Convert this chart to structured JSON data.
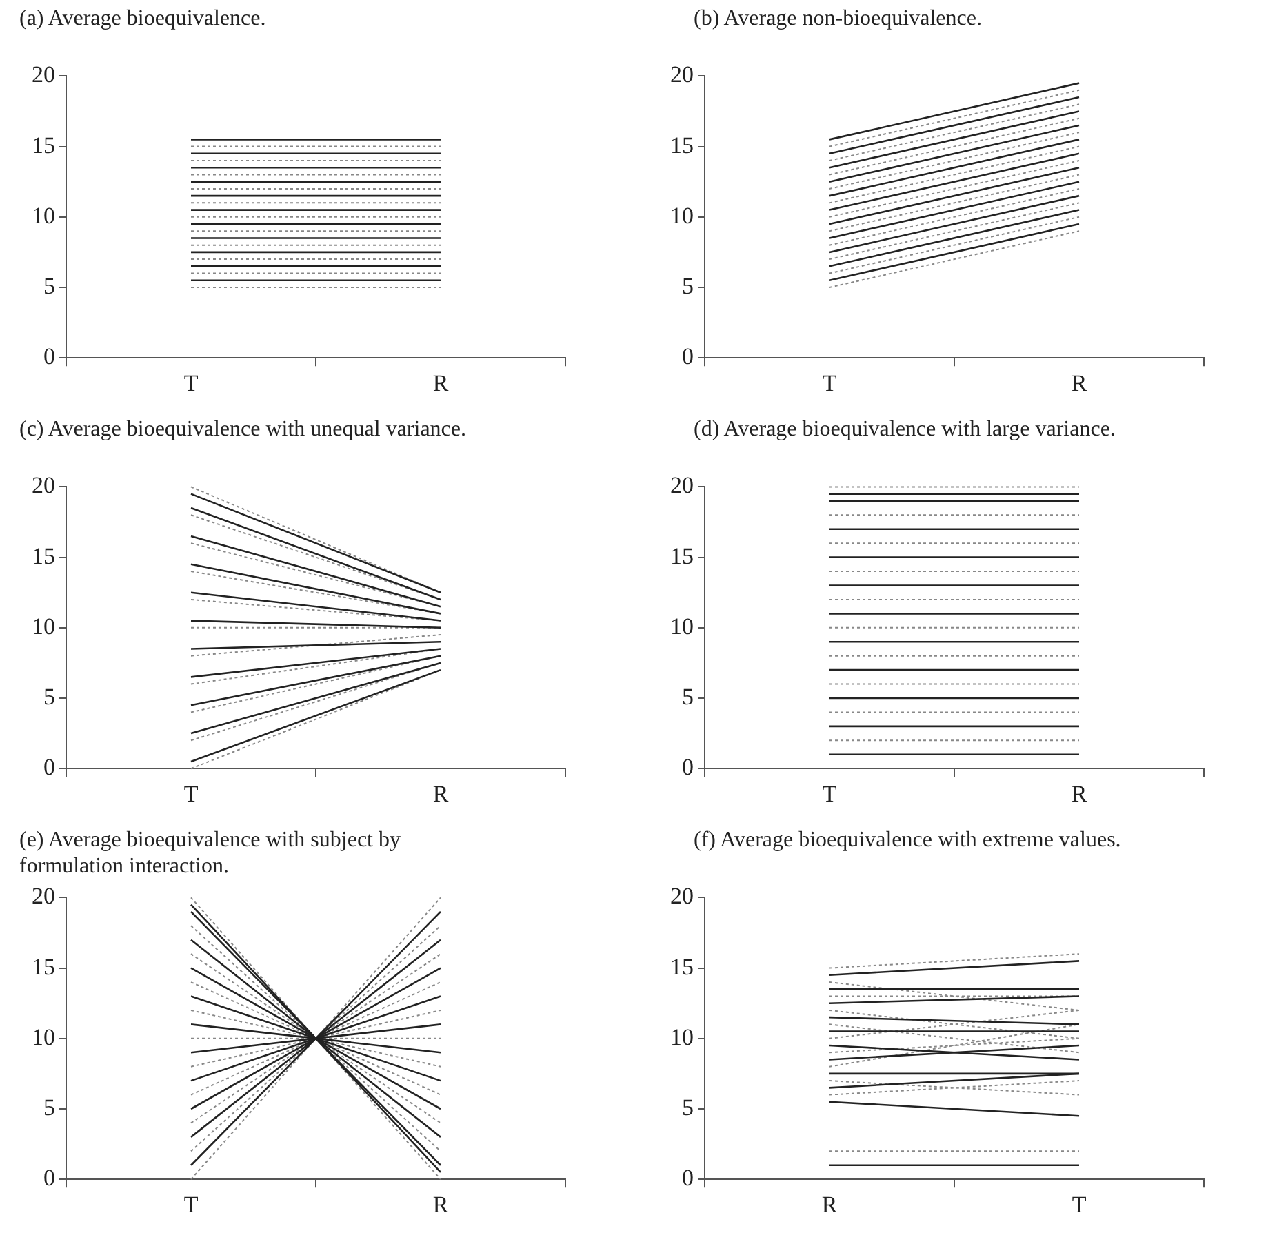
{
  "chart_data": [
    {
      "type": "line",
      "title": "(a) Average bioequivalence.",
      "categories": [
        "T",
        "R"
      ],
      "ylim": [
        0,
        20
      ],
      "yticks": [
        0,
        5,
        10,
        15,
        20
      ],
      "series": [
        {
          "color": "#222222",
          "line_style": "solid",
          "values": [
            15.5,
            15.5
          ]
        },
        {
          "color": "#222222",
          "line_style": "solid",
          "values": [
            14.5,
            14.5
          ]
        },
        {
          "color": "#222222",
          "line_style": "solid",
          "values": [
            13.5,
            13.5
          ]
        },
        {
          "color": "#222222",
          "line_style": "solid",
          "values": [
            12.5,
            12.5
          ]
        },
        {
          "color": "#222222",
          "line_style": "solid",
          "values": [
            11.5,
            11.5
          ]
        },
        {
          "color": "#222222",
          "line_style": "solid",
          "values": [
            10.5,
            10.5
          ]
        },
        {
          "color": "#222222",
          "line_style": "solid",
          "values": [
            9.5,
            9.5
          ]
        },
        {
          "color": "#222222",
          "line_style": "solid",
          "values": [
            8.5,
            8.5
          ]
        },
        {
          "color": "#222222",
          "line_style": "solid",
          "values": [
            7.5,
            7.5
          ]
        },
        {
          "color": "#222222",
          "line_style": "solid",
          "values": [
            6.5,
            6.5
          ]
        },
        {
          "color": "#222222",
          "line_style": "solid",
          "values": [
            5.5,
            5.5
          ]
        },
        {
          "color": "#888888",
          "line_style": "dotted",
          "values": [
            15,
            15
          ]
        },
        {
          "color": "#888888",
          "line_style": "dotted",
          "values": [
            14,
            14
          ]
        },
        {
          "color": "#888888",
          "line_style": "dotted",
          "values": [
            13,
            13
          ]
        },
        {
          "color": "#888888",
          "line_style": "dotted",
          "values": [
            12,
            12
          ]
        },
        {
          "color": "#888888",
          "line_style": "dotted",
          "values": [
            11,
            11
          ]
        },
        {
          "color": "#888888",
          "line_style": "dotted",
          "values": [
            10,
            10
          ]
        },
        {
          "color": "#888888",
          "line_style": "dotted",
          "values": [
            9,
            9
          ]
        },
        {
          "color": "#888888",
          "line_style": "dotted",
          "values": [
            8,
            8
          ]
        },
        {
          "color": "#888888",
          "line_style": "dotted",
          "values": [
            7,
            7
          ]
        },
        {
          "color": "#888888",
          "line_style": "dotted",
          "values": [
            6,
            6
          ]
        },
        {
          "color": "#888888",
          "line_style": "dotted",
          "values": [
            5,
            5
          ]
        }
      ]
    },
    {
      "type": "line",
      "title": "(b) Average non-bioequivalence.",
      "categories": [
        "T",
        "R"
      ],
      "ylim": [
        0,
        20
      ],
      "yticks": [
        0,
        5,
        10,
        15,
        20
      ],
      "series": [
        {
          "color": "#222222",
          "line_style": "solid",
          "values": [
            15.5,
            19.5
          ]
        },
        {
          "color": "#222222",
          "line_style": "solid",
          "values": [
            14.5,
            18.5
          ]
        },
        {
          "color": "#222222",
          "line_style": "solid",
          "values": [
            13.5,
            17.5
          ]
        },
        {
          "color": "#222222",
          "line_style": "solid",
          "values": [
            12.5,
            16.5
          ]
        },
        {
          "color": "#222222",
          "line_style": "solid",
          "values": [
            11.5,
            15.5
          ]
        },
        {
          "color": "#222222",
          "line_style": "solid",
          "values": [
            10.5,
            14.5
          ]
        },
        {
          "color": "#222222",
          "line_style": "solid",
          "values": [
            9.5,
            13.5
          ]
        },
        {
          "color": "#222222",
          "line_style": "solid",
          "values": [
            8.5,
            12.5
          ]
        },
        {
          "color": "#222222",
          "line_style": "solid",
          "values": [
            7.5,
            11.5
          ]
        },
        {
          "color": "#222222",
          "line_style": "solid",
          "values": [
            6.5,
            10.5
          ]
        },
        {
          "color": "#222222",
          "line_style": "solid",
          "values": [
            5.5,
            9.5
          ]
        },
        {
          "color": "#888888",
          "line_style": "dotted",
          "values": [
            15,
            19
          ]
        },
        {
          "color": "#888888",
          "line_style": "dotted",
          "values": [
            14,
            18
          ]
        },
        {
          "color": "#888888",
          "line_style": "dotted",
          "values": [
            13,
            17
          ]
        },
        {
          "color": "#888888",
          "line_style": "dotted",
          "values": [
            12,
            16
          ]
        },
        {
          "color": "#888888",
          "line_style": "dotted",
          "values": [
            11,
            15
          ]
        },
        {
          "color": "#888888",
          "line_style": "dotted",
          "values": [
            10,
            14
          ]
        },
        {
          "color": "#888888",
          "line_style": "dotted",
          "values": [
            9,
            13
          ]
        },
        {
          "color": "#888888",
          "line_style": "dotted",
          "values": [
            8,
            12
          ]
        },
        {
          "color": "#888888",
          "line_style": "dotted",
          "values": [
            7,
            11
          ]
        },
        {
          "color": "#888888",
          "line_style": "dotted",
          "values": [
            6,
            10
          ]
        },
        {
          "color": "#888888",
          "line_style": "dotted",
          "values": [
            5,
            9
          ]
        }
      ]
    },
    {
      "type": "line",
      "title": "(c) Average bioequivalence with unequal variance.",
      "categories": [
        "T",
        "R"
      ],
      "ylim": [
        0,
        20
      ],
      "yticks": [
        0,
        5,
        10,
        15,
        20
      ],
      "series": [
        {
          "color": "#222222",
          "line_style": "solid",
          "values": [
            19.5,
            12.5
          ]
        },
        {
          "color": "#222222",
          "line_style": "solid",
          "values": [
            18.5,
            12
          ]
        },
        {
          "color": "#222222",
          "line_style": "solid",
          "values": [
            16.5,
            11.5
          ]
        },
        {
          "color": "#222222",
          "line_style": "solid",
          "values": [
            14.5,
            11
          ]
        },
        {
          "color": "#222222",
          "line_style": "solid",
          "values": [
            12.5,
            10.5
          ]
        },
        {
          "color": "#222222",
          "line_style": "solid",
          "values": [
            10.5,
            10
          ]
        },
        {
          "color": "#222222",
          "line_style": "solid",
          "values": [
            8.5,
            9
          ]
        },
        {
          "color": "#222222",
          "line_style": "solid",
          "values": [
            6.5,
            8.5
          ]
        },
        {
          "color": "#222222",
          "line_style": "solid",
          "values": [
            4.5,
            8
          ]
        },
        {
          "color": "#222222",
          "line_style": "solid",
          "values": [
            2.5,
            7.5
          ]
        },
        {
          "color": "#222222",
          "line_style": "solid",
          "values": [
            0.5,
            7
          ]
        },
        {
          "color": "#888888",
          "line_style": "dotted",
          "values": [
            20,
            12.5
          ]
        },
        {
          "color": "#888888",
          "line_style": "dotted",
          "values": [
            18,
            12
          ]
        },
        {
          "color": "#888888",
          "line_style": "dotted",
          "values": [
            16,
            11.5
          ]
        },
        {
          "color": "#888888",
          "line_style": "dotted",
          "values": [
            14,
            11
          ]
        },
        {
          "color": "#888888",
          "line_style": "dotted",
          "values": [
            12,
            10.5
          ]
        },
        {
          "color": "#888888",
          "line_style": "dotted",
          "values": [
            10,
            10
          ]
        },
        {
          "color": "#888888",
          "line_style": "dotted",
          "values": [
            8,
            9.5
          ]
        },
        {
          "color": "#888888",
          "line_style": "dotted",
          "values": [
            6,
            8.5
          ]
        },
        {
          "color": "#888888",
          "line_style": "dotted",
          "values": [
            4,
            8
          ]
        },
        {
          "color": "#888888",
          "line_style": "dotted",
          "values": [
            2,
            7.5
          ]
        },
        {
          "color": "#888888",
          "line_style": "dotted",
          "values": [
            0,
            7
          ]
        }
      ]
    },
    {
      "type": "line",
      "title": "(d) Average bioequivalence with large variance.",
      "categories": [
        "T",
        "R"
      ],
      "ylim": [
        0,
        20
      ],
      "yticks": [
        0,
        5,
        10,
        15,
        20
      ],
      "series": [
        {
          "color": "#222222",
          "line_style": "solid",
          "values": [
            19.5,
            19.5
          ]
        },
        {
          "color": "#222222",
          "line_style": "solid",
          "values": [
            19,
            19
          ]
        },
        {
          "color": "#222222",
          "line_style": "solid",
          "values": [
            17,
            17
          ]
        },
        {
          "color": "#222222",
          "line_style": "solid",
          "values": [
            15,
            15
          ]
        },
        {
          "color": "#222222",
          "line_style": "solid",
          "values": [
            13,
            13
          ]
        },
        {
          "color": "#222222",
          "line_style": "solid",
          "values": [
            11,
            11
          ]
        },
        {
          "color": "#222222",
          "line_style": "solid",
          "values": [
            9,
            9
          ]
        },
        {
          "color": "#222222",
          "line_style": "solid",
          "values": [
            7,
            7
          ]
        },
        {
          "color": "#222222",
          "line_style": "solid",
          "values": [
            5,
            5
          ]
        },
        {
          "color": "#222222",
          "line_style": "solid",
          "values": [
            3,
            3
          ]
        },
        {
          "color": "#222222",
          "line_style": "solid",
          "values": [
            1,
            1
          ]
        },
        {
          "color": "#888888",
          "line_style": "dotted",
          "values": [
            20,
            20
          ]
        },
        {
          "color": "#888888",
          "line_style": "dotted",
          "values": [
            18,
            18
          ]
        },
        {
          "color": "#888888",
          "line_style": "dotted",
          "values": [
            16,
            16
          ]
        },
        {
          "color": "#888888",
          "line_style": "dotted",
          "values": [
            14,
            14
          ]
        },
        {
          "color": "#888888",
          "line_style": "dotted",
          "values": [
            12,
            12
          ]
        },
        {
          "color": "#888888",
          "line_style": "dotted",
          "values": [
            10,
            10
          ]
        },
        {
          "color": "#888888",
          "line_style": "dotted",
          "values": [
            8,
            8
          ]
        },
        {
          "color": "#888888",
          "line_style": "dotted",
          "values": [
            6,
            6
          ]
        },
        {
          "color": "#888888",
          "line_style": "dotted",
          "values": [
            4,
            4
          ]
        },
        {
          "color": "#888888",
          "line_style": "dotted",
          "values": [
            2,
            2
          ]
        }
      ]
    },
    {
      "type": "line",
      "title": "(e) Average bioequivalence with subject by formulation interaction.",
      "categories": [
        "T",
        "R"
      ],
      "ylim": [
        0,
        20
      ],
      "yticks": [
        0,
        5,
        10,
        15,
        20
      ],
      "series": [
        {
          "color": "#222222",
          "line_style": "solid",
          "values": [
            19.5,
            0.5
          ]
        },
        {
          "color": "#222222",
          "line_style": "solid",
          "values": [
            19,
            1
          ]
        },
        {
          "color": "#222222",
          "line_style": "solid",
          "values": [
            17,
            3
          ]
        },
        {
          "color": "#222222",
          "line_style": "solid",
          "values": [
            15,
            5
          ]
        },
        {
          "color": "#222222",
          "line_style": "solid",
          "values": [
            13,
            7
          ]
        },
        {
          "color": "#222222",
          "line_style": "solid",
          "values": [
            11,
            9
          ]
        },
        {
          "color": "#222222",
          "line_style": "solid",
          "values": [
            9,
            11
          ]
        },
        {
          "color": "#222222",
          "line_style": "solid",
          "values": [
            7,
            13
          ]
        },
        {
          "color": "#222222",
          "line_style": "solid",
          "values": [
            5,
            15
          ]
        },
        {
          "color": "#222222",
          "line_style": "solid",
          "values": [
            3,
            17
          ]
        },
        {
          "color": "#222222",
          "line_style": "solid",
          "values": [
            1,
            19
          ]
        },
        {
          "color": "#888888",
          "line_style": "dotted",
          "values": [
            20,
            0
          ]
        },
        {
          "color": "#888888",
          "line_style": "dotted",
          "values": [
            18,
            2
          ]
        },
        {
          "color": "#888888",
          "line_style": "dotted",
          "values": [
            16,
            4
          ]
        },
        {
          "color": "#888888",
          "line_style": "dotted",
          "values": [
            14,
            6
          ]
        },
        {
          "color": "#888888",
          "line_style": "dotted",
          "values": [
            12,
            8
          ]
        },
        {
          "color": "#888888",
          "line_style": "dotted",
          "values": [
            10,
            10
          ]
        },
        {
          "color": "#888888",
          "line_style": "dotted",
          "values": [
            8,
            12
          ]
        },
        {
          "color": "#888888",
          "line_style": "dotted",
          "values": [
            6,
            14
          ]
        },
        {
          "color": "#888888",
          "line_style": "dotted",
          "values": [
            4,
            16
          ]
        },
        {
          "color": "#888888",
          "line_style": "dotted",
          "values": [
            2,
            18
          ]
        },
        {
          "color": "#888888",
          "line_style": "dotted",
          "values": [
            0,
            20
          ]
        }
      ]
    },
    {
      "type": "line",
      "title": "(f) Average bioequivalence with extreme values.",
      "categories": [
        "R",
        "T"
      ],
      "ylim": [
        0,
        20
      ],
      "yticks": [
        0,
        5,
        10,
        15,
        20
      ],
      "series": [
        {
          "color": "#222222",
          "line_style": "solid",
          "values": [
            14.5,
            15.5
          ]
        },
        {
          "color": "#222222",
          "line_style": "solid",
          "values": [
            13.5,
            13.5
          ]
        },
        {
          "color": "#222222",
          "line_style": "solid",
          "values": [
            12.5,
            13
          ]
        },
        {
          "color": "#222222",
          "line_style": "solid",
          "values": [
            11.5,
            11
          ]
        },
        {
          "color": "#222222",
          "line_style": "solid",
          "values": [
            10.5,
            10.5
          ]
        },
        {
          "color": "#222222",
          "line_style": "solid",
          "values": [
            9.5,
            8.5
          ]
        },
        {
          "color": "#222222",
          "line_style": "solid",
          "values": [
            8.5,
            9.5
          ]
        },
        {
          "color": "#222222",
          "line_style": "solid",
          "values": [
            7.5,
            7.5
          ]
        },
        {
          "color": "#222222",
          "line_style": "solid",
          "values": [
            6.5,
            7.5
          ]
        },
        {
          "color": "#222222",
          "line_style": "solid",
          "values": [
            5.5,
            4.5
          ]
        },
        {
          "color": "#222222",
          "line_style": "solid",
          "values": [
            1,
            1
          ]
        },
        {
          "color": "#888888",
          "line_style": "dotted",
          "values": [
            15,
            16
          ]
        },
        {
          "color": "#888888",
          "line_style": "dotted",
          "values": [
            14,
            12
          ]
        },
        {
          "color": "#888888",
          "line_style": "dotted",
          "values": [
            13,
            13
          ]
        },
        {
          "color": "#888888",
          "line_style": "dotted",
          "values": [
            12,
            10
          ]
        },
        {
          "color": "#888888",
          "line_style": "dotted",
          "values": [
            11,
            9
          ]
        },
        {
          "color": "#888888",
          "line_style": "dotted",
          "values": [
            10,
            12
          ]
        },
        {
          "color": "#888888",
          "line_style": "dotted",
          "values": [
            9,
            10
          ]
        },
        {
          "color": "#888888",
          "line_style": "dotted",
          "values": [
            8,
            11
          ]
        },
        {
          "color": "#888888",
          "line_style": "dotted",
          "values": [
            7,
            6
          ]
        },
        {
          "color": "#888888",
          "line_style": "dotted",
          "values": [
            6,
            7
          ]
        },
        {
          "color": "#888888",
          "line_style": "dotted",
          "values": [
            2,
            2
          ]
        }
      ]
    }
  ]
}
